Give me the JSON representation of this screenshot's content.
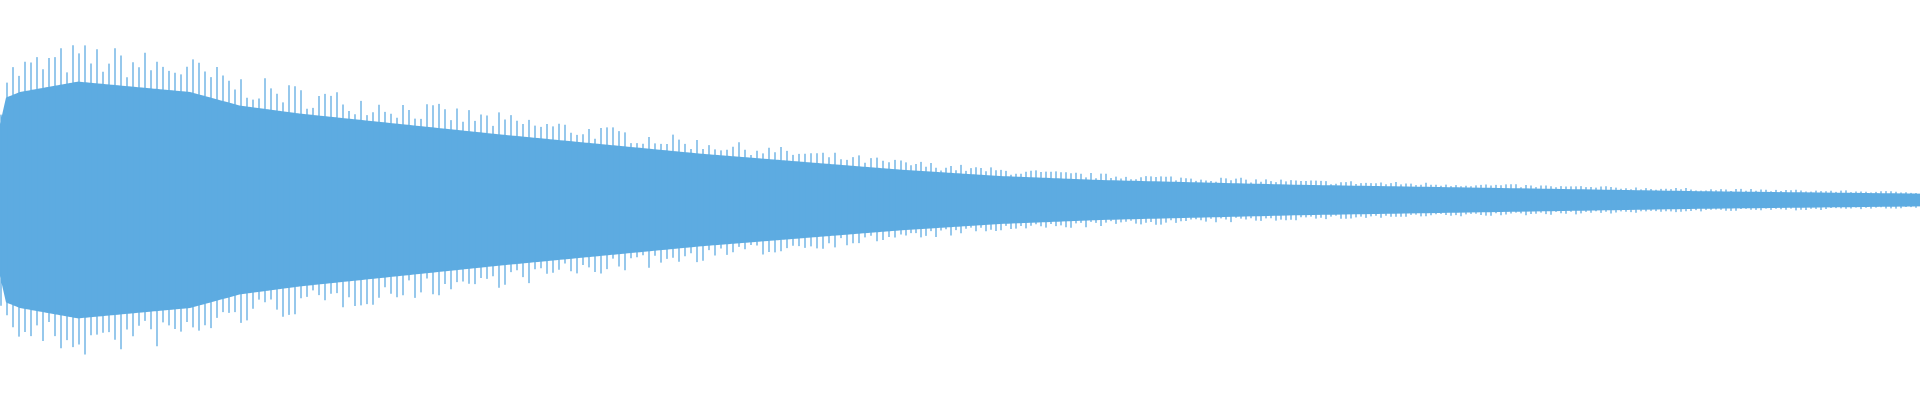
{
  "waveform": {
    "color": "#5dabe1",
    "background": "#ffffff"
  }
}
